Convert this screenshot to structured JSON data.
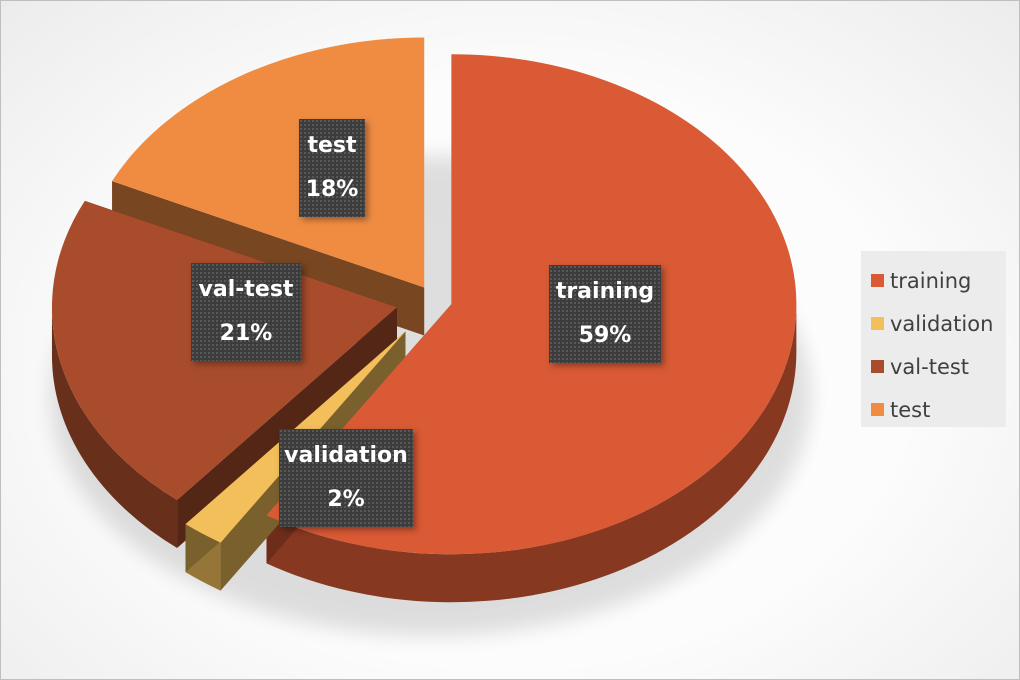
{
  "chart_data": {
    "type": "pie",
    "title": "",
    "categories": [
      "training",
      "validation",
      "val-test",
      "test"
    ],
    "values": [
      59,
      2,
      21,
      18
    ],
    "value_labels": [
      "59%",
      "2%",
      "21%",
      "18%"
    ],
    "colors": [
      "#d95a34",
      "#f2bf5a",
      "#a84c2c",
      "#ef8c42"
    ],
    "exploded": true,
    "style_3d": true,
    "legend_position": "right",
    "legend": [
      {
        "label": "training",
        "color": "#d95a34"
      },
      {
        "label": "validation",
        "color": "#f2bf5a"
      },
      {
        "label": "val-test",
        "color": "#a84c2c"
      },
      {
        "label": "test",
        "color": "#ef8c42"
      }
    ]
  }
}
